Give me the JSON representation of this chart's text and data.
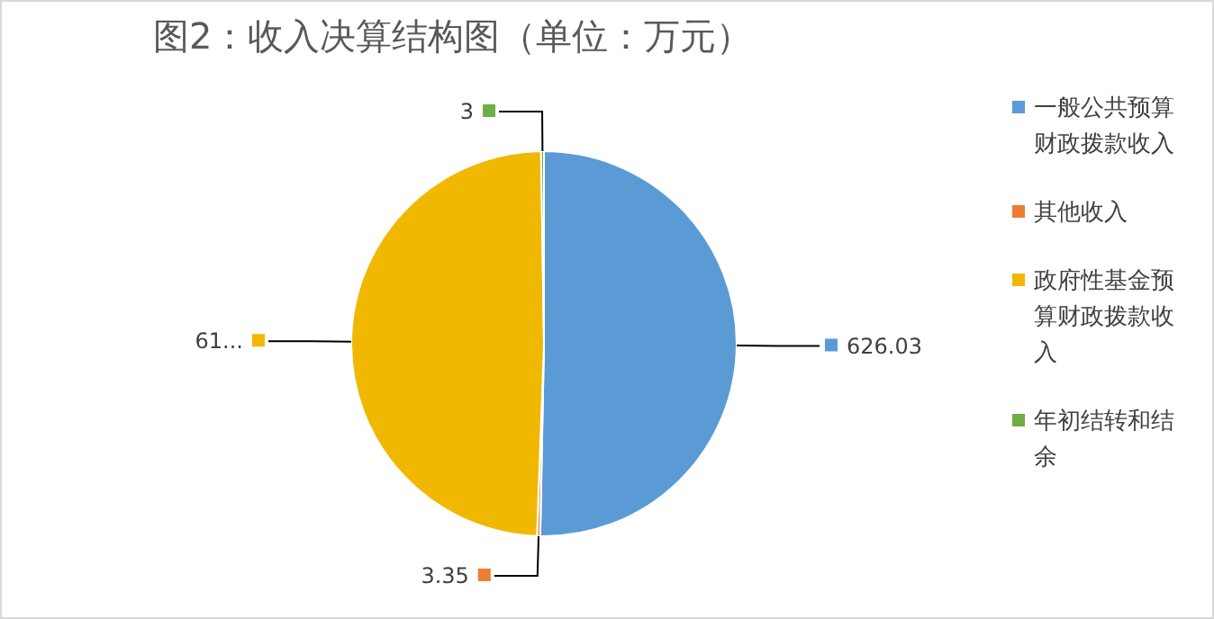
{
  "chart_data": {
    "type": "pie",
    "title": "图2：收入决算结构图（单位：万元）",
    "categories": [
      "一般公共预算财政拨款收入",
      "其他收入",
      "政府性基金预算财政拨款收入",
      "年初结转和结余"
    ],
    "values": [
      626.03,
      3.35,
      612,
      3
    ],
    "colors": [
      "#5b9bd5",
      "#ed7d31",
      "#f0b800",
      "#70ad47"
    ],
    "value_labels": [
      "626.03",
      "3.35",
      "61...",
      "3"
    ],
    "legend": "right"
  }
}
